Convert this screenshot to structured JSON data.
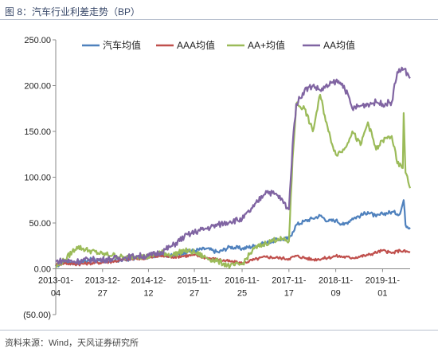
{
  "figure": {
    "title": "图 8：汽车行业利差走势（BP）",
    "source": "资料来源：Wind，天风证券研究所"
  },
  "colors": {
    "汽车均值": "#4f81bd",
    "AAA均值": "#c0504d",
    "AA+均值": "#9bbb59",
    "AA均值": "#8064a2"
  },
  "chart_data": {
    "type": "line",
    "title": "",
    "xlabel": "",
    "ylabel": "",
    "ylim": [
      -50,
      250
    ],
    "y_ticks": [
      "(50.00)",
      "0.00",
      "50.00",
      "100.00",
      "150.00",
      "200.00",
      "250.00"
    ],
    "x_ticks": [
      [
        "2013-01-",
        "04"
      ],
      [
        "2013-12-",
        "27"
      ],
      [
        "2014-12-",
        "12"
      ],
      [
        "2015-11-",
        "27"
      ],
      [
        "2016-11-",
        "25"
      ],
      [
        "2017-11-",
        "17"
      ],
      [
        "2018-11-",
        "09"
      ],
      [
        "2019-11-",
        "01"
      ]
    ],
    "x_tick_dates": [
      "2013-01-04",
      "2013-12-27",
      "2014-12-12",
      "2015-11-27",
      "2016-11-25",
      "2017-11-17",
      "2018-11-09",
      "2019-11-01"
    ],
    "x_range": [
      "2013-01-04",
      "2020-05-29"
    ],
    "legend_position": "top",
    "grid": false,
    "series": [
      {
        "name": "汽车均值",
        "points": [
          [
            "2013-01-04",
            3
          ],
          [
            "2013-03-15",
            8
          ],
          [
            "2013-06-14",
            6
          ],
          [
            "2013-09-13",
            10
          ],
          [
            "2013-12-27",
            9
          ],
          [
            "2014-03-14",
            8
          ],
          [
            "2014-06-13",
            10
          ],
          [
            "2014-09-12",
            12
          ],
          [
            "2014-12-12",
            13
          ],
          [
            "2015-03-13",
            16
          ],
          [
            "2015-06-12",
            14
          ],
          [
            "2015-09-11",
            18
          ],
          [
            "2015-11-27",
            20
          ],
          [
            "2016-02-26",
            22
          ],
          [
            "2016-05-27",
            18
          ],
          [
            "2016-08-26",
            24
          ],
          [
            "2016-11-25",
            22
          ],
          [
            "2017-02-24",
            25
          ],
          [
            "2017-05-26",
            28
          ],
          [
            "2017-08-25",
            32
          ],
          [
            "2017-11-17",
            33
          ],
          [
            "2017-12-15",
            40
          ],
          [
            "2018-01-12",
            48
          ],
          [
            "2018-03-16",
            52
          ],
          [
            "2018-05-18",
            55
          ],
          [
            "2018-07-13",
            58
          ],
          [
            "2018-09-14",
            52
          ],
          [
            "2018-11-09",
            53
          ],
          [
            "2019-01-11",
            48
          ],
          [
            "2019-03-15",
            55
          ],
          [
            "2019-05-17",
            58
          ],
          [
            "2019-07-12",
            62
          ],
          [
            "2019-09-13",
            57
          ],
          [
            "2019-11-01",
            60
          ],
          [
            "2020-01-10",
            62
          ],
          [
            "2020-03-13",
            60
          ],
          [
            "2020-04-10",
            75
          ],
          [
            "2020-04-24",
            48
          ],
          [
            "2020-05-29",
            45
          ]
        ]
      },
      {
        "name": "AAA均值",
        "points": [
          [
            "2013-01-04",
            5
          ],
          [
            "2013-03-15",
            6
          ],
          [
            "2013-06-14",
            5
          ],
          [
            "2013-09-13",
            6
          ],
          [
            "2013-12-27",
            7
          ],
          [
            "2014-03-14",
            8
          ],
          [
            "2014-06-13",
            10
          ],
          [
            "2014-09-12",
            11
          ],
          [
            "2014-12-12",
            12
          ],
          [
            "2015-03-13",
            14
          ],
          [
            "2015-06-12",
            13
          ],
          [
            "2015-09-11",
            14
          ],
          [
            "2015-11-27",
            15
          ],
          [
            "2016-02-26",
            12
          ],
          [
            "2016-05-27",
            10
          ],
          [
            "2016-08-26",
            8
          ],
          [
            "2016-11-25",
            6
          ],
          [
            "2017-02-24",
            10
          ],
          [
            "2017-05-26",
            13
          ],
          [
            "2017-08-25",
            12
          ],
          [
            "2017-11-17",
            11
          ],
          [
            "2018-01-12",
            14
          ],
          [
            "2018-05-18",
            10
          ],
          [
            "2018-09-14",
            12
          ],
          [
            "2018-11-09",
            14
          ],
          [
            "2019-03-15",
            12
          ],
          [
            "2019-07-12",
            15
          ],
          [
            "2019-11-01",
            20
          ],
          [
            "2020-01-10",
            17
          ],
          [
            "2020-03-13",
            20
          ],
          [
            "2020-05-29",
            18
          ]
        ]
      },
      {
        "name": "AA+均值",
        "points": [
          [
            "2013-01-04",
            2
          ],
          [
            "2013-03-15",
            10
          ],
          [
            "2013-06-14",
            24
          ],
          [
            "2013-09-13",
            20
          ],
          [
            "2013-12-27",
            16
          ],
          [
            "2014-03-14",
            15
          ],
          [
            "2014-06-13",
            12
          ],
          [
            "2014-09-12",
            14
          ],
          [
            "2014-12-12",
            13
          ],
          [
            "2015-03-13",
            18
          ],
          [
            "2015-06-12",
            15
          ],
          [
            "2015-09-11",
            20
          ],
          [
            "2015-11-27",
            18
          ],
          [
            "2016-02-26",
            12
          ],
          [
            "2016-05-27",
            8
          ],
          [
            "2016-08-26",
            3
          ],
          [
            "2016-11-25",
            5
          ],
          [
            "2017-02-24",
            22
          ],
          [
            "2017-05-26",
            28
          ],
          [
            "2017-08-25",
            33
          ],
          [
            "2017-11-17",
            30
          ],
          [
            "2017-12-15",
            120
          ],
          [
            "2018-01-12",
            180
          ],
          [
            "2018-03-16",
            175
          ],
          [
            "2018-05-18",
            150
          ],
          [
            "2018-07-13",
            190
          ],
          [
            "2018-09-14",
            150
          ],
          [
            "2018-11-09",
            125
          ],
          [
            "2019-01-11",
            130
          ],
          [
            "2019-03-15",
            150
          ],
          [
            "2019-05-17",
            135
          ],
          [
            "2019-07-12",
            160
          ],
          [
            "2019-09-13",
            130
          ],
          [
            "2019-11-01",
            140
          ],
          [
            "2020-01-10",
            145
          ],
          [
            "2020-02-21",
            115
          ],
          [
            "2020-04-03",
            110
          ],
          [
            "2020-04-10",
            170
          ],
          [
            "2020-04-24",
            105
          ],
          [
            "2020-05-29",
            88
          ]
        ]
      },
      {
        "name": "AA均值",
        "points": [
          [
            "2013-01-04",
            8
          ],
          [
            "2013-03-15",
            9
          ],
          [
            "2013-06-14",
            8
          ],
          [
            "2013-09-13",
            10
          ],
          [
            "2013-12-27",
            10
          ],
          [
            "2014-03-14",
            11
          ],
          [
            "2014-06-13",
            12
          ],
          [
            "2014-09-12",
            14
          ],
          [
            "2014-12-12",
            14
          ],
          [
            "2015-03-13",
            18
          ],
          [
            "2015-06-12",
            25
          ],
          [
            "2015-09-11",
            35
          ],
          [
            "2015-11-27",
            40
          ],
          [
            "2016-02-26",
            44
          ],
          [
            "2016-05-27",
            48
          ],
          [
            "2016-08-26",
            52
          ],
          [
            "2016-11-25",
            54
          ],
          [
            "2017-02-24",
            68
          ],
          [
            "2017-05-26",
            85
          ],
          [
            "2017-08-25",
            80
          ],
          [
            "2017-11-17",
            65
          ],
          [
            "2017-12-15",
            135
          ],
          [
            "2018-01-12",
            180
          ],
          [
            "2018-03-16",
            195
          ],
          [
            "2018-05-18",
            200
          ],
          [
            "2018-07-13",
            195
          ],
          [
            "2018-09-14",
            200
          ],
          [
            "2018-11-09",
            205
          ],
          [
            "2019-01-11",
            200
          ],
          [
            "2019-03-15",
            175
          ],
          [
            "2019-05-17",
            178
          ],
          [
            "2019-07-12",
            180
          ],
          [
            "2019-09-13",
            182
          ],
          [
            "2019-11-01",
            180
          ],
          [
            "2020-01-10",
            182
          ],
          [
            "2020-02-21",
            215
          ],
          [
            "2020-04-10",
            218
          ],
          [
            "2020-05-15",
            212
          ],
          [
            "2020-05-29",
            208
          ]
        ]
      }
    ]
  }
}
